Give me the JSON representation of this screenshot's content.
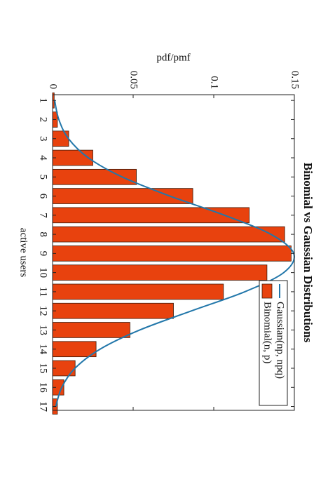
{
  "chart_data": {
    "type": "bar",
    "title": "Binomial vs Gaussian Distributions",
    "xlabel": "active users",
    "ylabel": "pdf/pmf",
    "x": [
      1,
      2,
      3,
      4,
      5,
      6,
      7,
      8,
      9,
      10,
      11,
      12,
      13,
      14,
      15,
      16,
      17
    ],
    "xlim": [
      0.7,
      17.2
    ],
    "xticks": [
      1,
      2,
      3,
      4,
      5,
      6,
      7,
      8,
      9,
      10,
      11,
      12,
      13,
      14,
      15,
      16,
      17
    ],
    "ylim": [
      0,
      0.15
    ],
    "yticks": [
      0,
      0.05,
      0.1,
      0.15
    ],
    "legend": "northeast",
    "series": [
      {
        "name": "Gaussian(np, npq)",
        "type": "line",
        "color": "#2277aa",
        "values": [
          0.0013,
          0.0039,
          0.0099,
          0.0222,
          0.0432,
          0.0728,
          0.1066,
          0.1355,
          0.1496,
          0.1434,
          0.1193,
          0.0862,
          0.0541,
          0.0295,
          0.0139,
          0.0057,
          0.002
        ]
      },
      {
        "name": "Binomial(n, p)",
        "type": "bar",
        "color": "#e8420e",
        "values": [
          0.001,
          0.003,
          0.01,
          0.025,
          0.052,
          0.087,
          0.122,
          0.144,
          0.148,
          0.133,
          0.106,
          0.075,
          0.048,
          0.027,
          0.014,
          0.007,
          0.003
        ]
      }
    ]
  }
}
